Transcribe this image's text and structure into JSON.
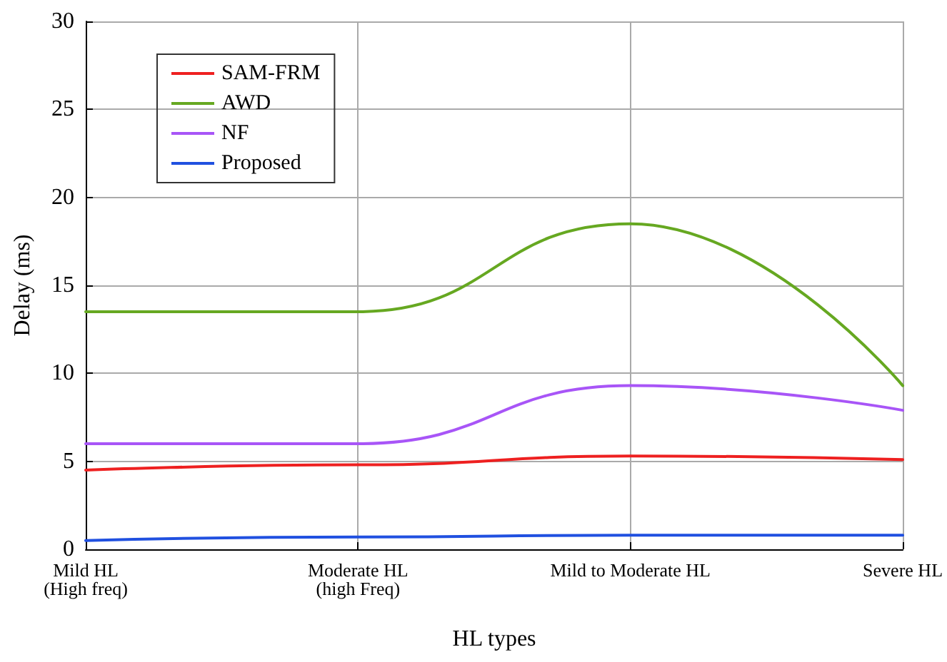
{
  "chart_data": {
    "type": "line",
    "xlabel": "HL types",
    "ylabel": "Delay (ms)",
    "categories": [
      "Mild HL\n(High freq)",
      "Moderate HL\n(high Freq)",
      "Mild to Moderate HL",
      "Severe HL"
    ],
    "series": [
      {
        "name": "SAM-FRM",
        "color": "#ee2020",
        "values": [
          4.5,
          4.8,
          5.3,
          5.1
        ]
      },
      {
        "name": "AWD",
        "color": "#66a821",
        "values": [
          13.5,
          13.5,
          18.5,
          9.3
        ]
      },
      {
        "name": "NF",
        "color": "#a855f7",
        "values": [
          6.0,
          6.0,
          9.3,
          7.9
        ]
      },
      {
        "name": "Proposed",
        "color": "#2050e0",
        "values": [
          0.5,
          0.7,
          0.8,
          0.8
        ]
      }
    ],
    "ylim": [
      0,
      30
    ],
    "yticks": [
      0,
      5,
      10,
      15,
      20,
      25,
      30
    ],
    "grid": true,
    "legend": "top left",
    "marker": "none",
    "line_style": "solid"
  }
}
